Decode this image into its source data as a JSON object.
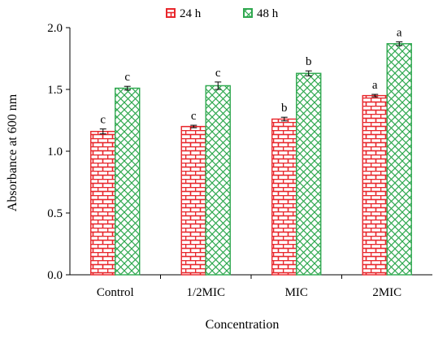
{
  "chart_data": {
    "type": "bar",
    "title": "",
    "xlabel": "Concentration",
    "ylabel": "Absorbance at 600 nm",
    "ylim": [
      0,
      2.0
    ],
    "yticks": [
      "0.0",
      "0.5",
      "1.0",
      "1.5",
      "2.0"
    ],
    "ytick_values": [
      0,
      0.5,
      1.0,
      1.5,
      2.0
    ],
    "grid": false,
    "legend_position": "top-center",
    "categories": [
      "Control",
      "1/2MIC",
      "MIC",
      "2MIC"
    ],
    "series": [
      {
        "name": "24 h",
        "color": "#e8262b",
        "pattern": "brick",
        "values": [
          1.16,
          1.2,
          1.26,
          1.45
        ],
        "errors": [
          0.02,
          0.01,
          0.015,
          0.01
        ],
        "labels": [
          "c",
          "c",
          "b",
          "a"
        ]
      },
      {
        "name": "48 h",
        "color": "#2fa84f",
        "pattern": "diamond-lattice",
        "values": [
          1.51,
          1.53,
          1.63,
          1.87
        ],
        "errors": [
          0.015,
          0.03,
          0.02,
          0.015
        ],
        "labels": [
          "c",
          "c",
          "b",
          "a"
        ]
      }
    ]
  }
}
